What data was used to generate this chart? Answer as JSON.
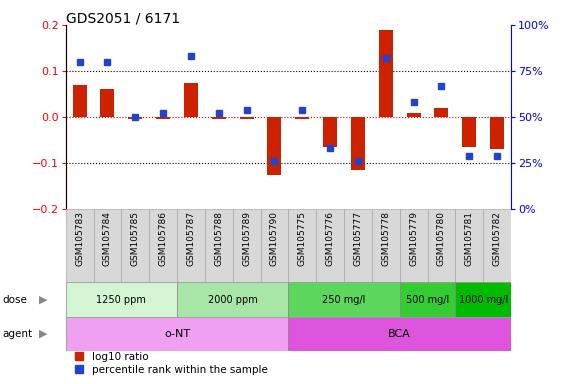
{
  "title": "GDS2051 / 6171",
  "samples": [
    "GSM105783",
    "GSM105784",
    "GSM105785",
    "GSM105786",
    "GSM105787",
    "GSM105788",
    "GSM105789",
    "GSM105790",
    "GSM105775",
    "GSM105776",
    "GSM105777",
    "GSM105778",
    "GSM105779",
    "GSM105780",
    "GSM105781",
    "GSM105782"
  ],
  "log10_ratio": [
    0.07,
    0.06,
    -0.004,
    -0.003,
    0.075,
    -0.003,
    -0.003,
    -0.125,
    -0.003,
    -0.065,
    -0.115,
    0.19,
    0.01,
    0.02,
    -0.065,
    -0.07
  ],
  "percentile_rank": [
    80,
    80,
    50,
    52,
    83,
    52,
    54,
    26,
    54,
    33,
    26,
    82,
    58,
    67,
    29,
    29
  ],
  "dose_groups": [
    {
      "label": "1250 ppm",
      "start": 0,
      "end": 4,
      "color": "#d4f5d4"
    },
    {
      "label": "2000 ppm",
      "start": 4,
      "end": 8,
      "color": "#a8e6a8"
    },
    {
      "label": "250 mg/l",
      "start": 8,
      "end": 12,
      "color": "#5cd65c"
    },
    {
      "label": "500 mg/l",
      "start": 12,
      "end": 14,
      "color": "#33cc33"
    },
    {
      "label": "1000 mg/l",
      "start": 14,
      "end": 16,
      "color": "#00bb00"
    }
  ],
  "agent_groups": [
    {
      "label": "o-NT",
      "start": 0,
      "end": 8,
      "color": "#f0a0f0"
    },
    {
      "label": "BCA",
      "start": 8,
      "end": 16,
      "color": "#dd55dd"
    }
  ],
  "ylim_left": [
    -0.2,
    0.2
  ],
  "yticks_left": [
    -0.2,
    -0.1,
    0.0,
    0.1,
    0.2
  ],
  "ylim_right": [
    0,
    100
  ],
  "yticks_right": [
    0,
    25,
    50,
    75,
    100
  ],
  "bar_color_red": "#cc2200",
  "marker_color_blue": "#2244cc",
  "bg_color": "#ffffff",
  "label_red": "log10 ratio",
  "label_blue": "percentile rank within the sample",
  "sample_bg_color": "#d8d8d8",
  "sample_border_color": "#aaaaaa"
}
